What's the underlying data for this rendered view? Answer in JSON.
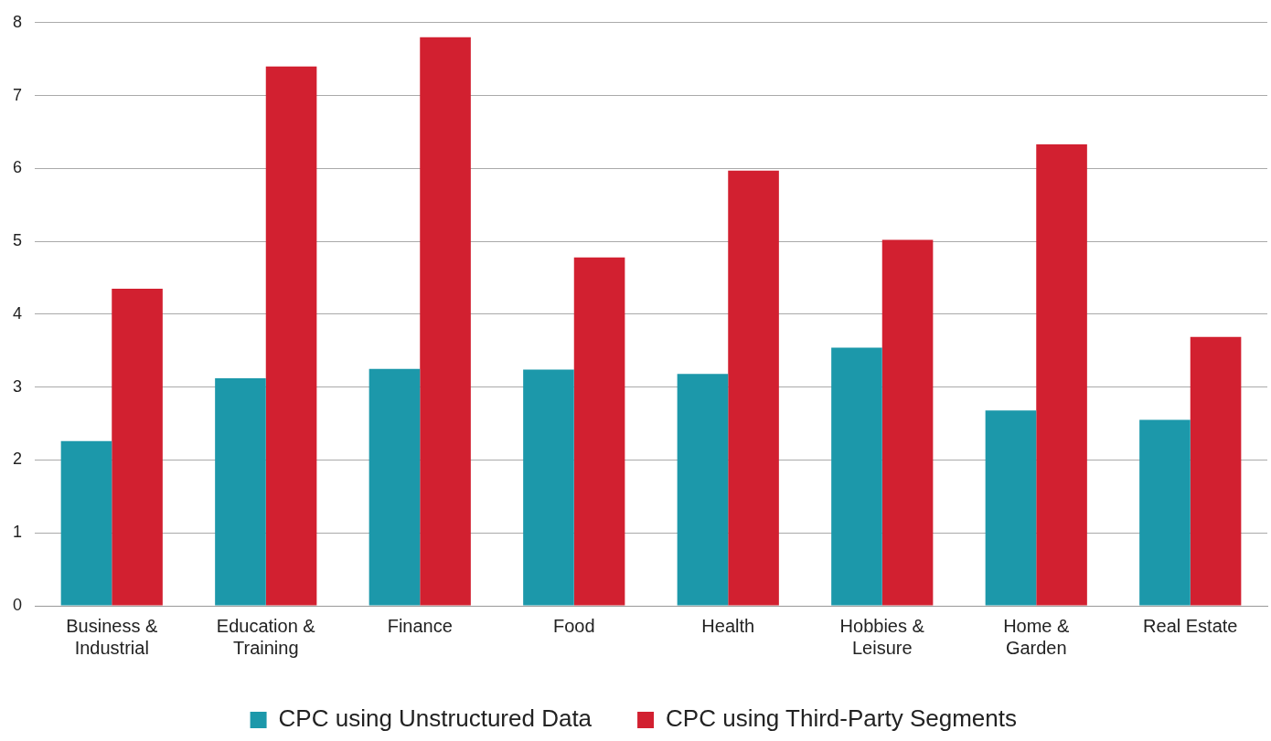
{
  "chart_data": {
    "type": "bar",
    "categories": [
      "Business & Industrial",
      "Education & Training",
      "Finance",
      "Food",
      "Health",
      "Hobbies & Leisure",
      "Home & Garden",
      "Real Estate"
    ],
    "series": [
      {
        "name": "CPC using Unstructured Data",
        "color": "#1c98aa",
        "values": [
          2.26,
          3.12,
          3.25,
          3.24,
          3.18,
          3.54,
          2.68,
          2.55
        ]
      },
      {
        "name": "CPC using Third-Party Segments",
        "color": "#d22030",
        "values": [
          4.35,
          7.4,
          7.8,
          4.78,
          5.97,
          5.02,
          6.33,
          3.69
        ]
      }
    ],
    "ylim": [
      0,
      8
    ],
    "yticks": [
      0,
      1,
      2,
      3,
      4,
      5,
      6,
      7,
      8
    ],
    "grid": "y",
    "legend": "bottom"
  }
}
